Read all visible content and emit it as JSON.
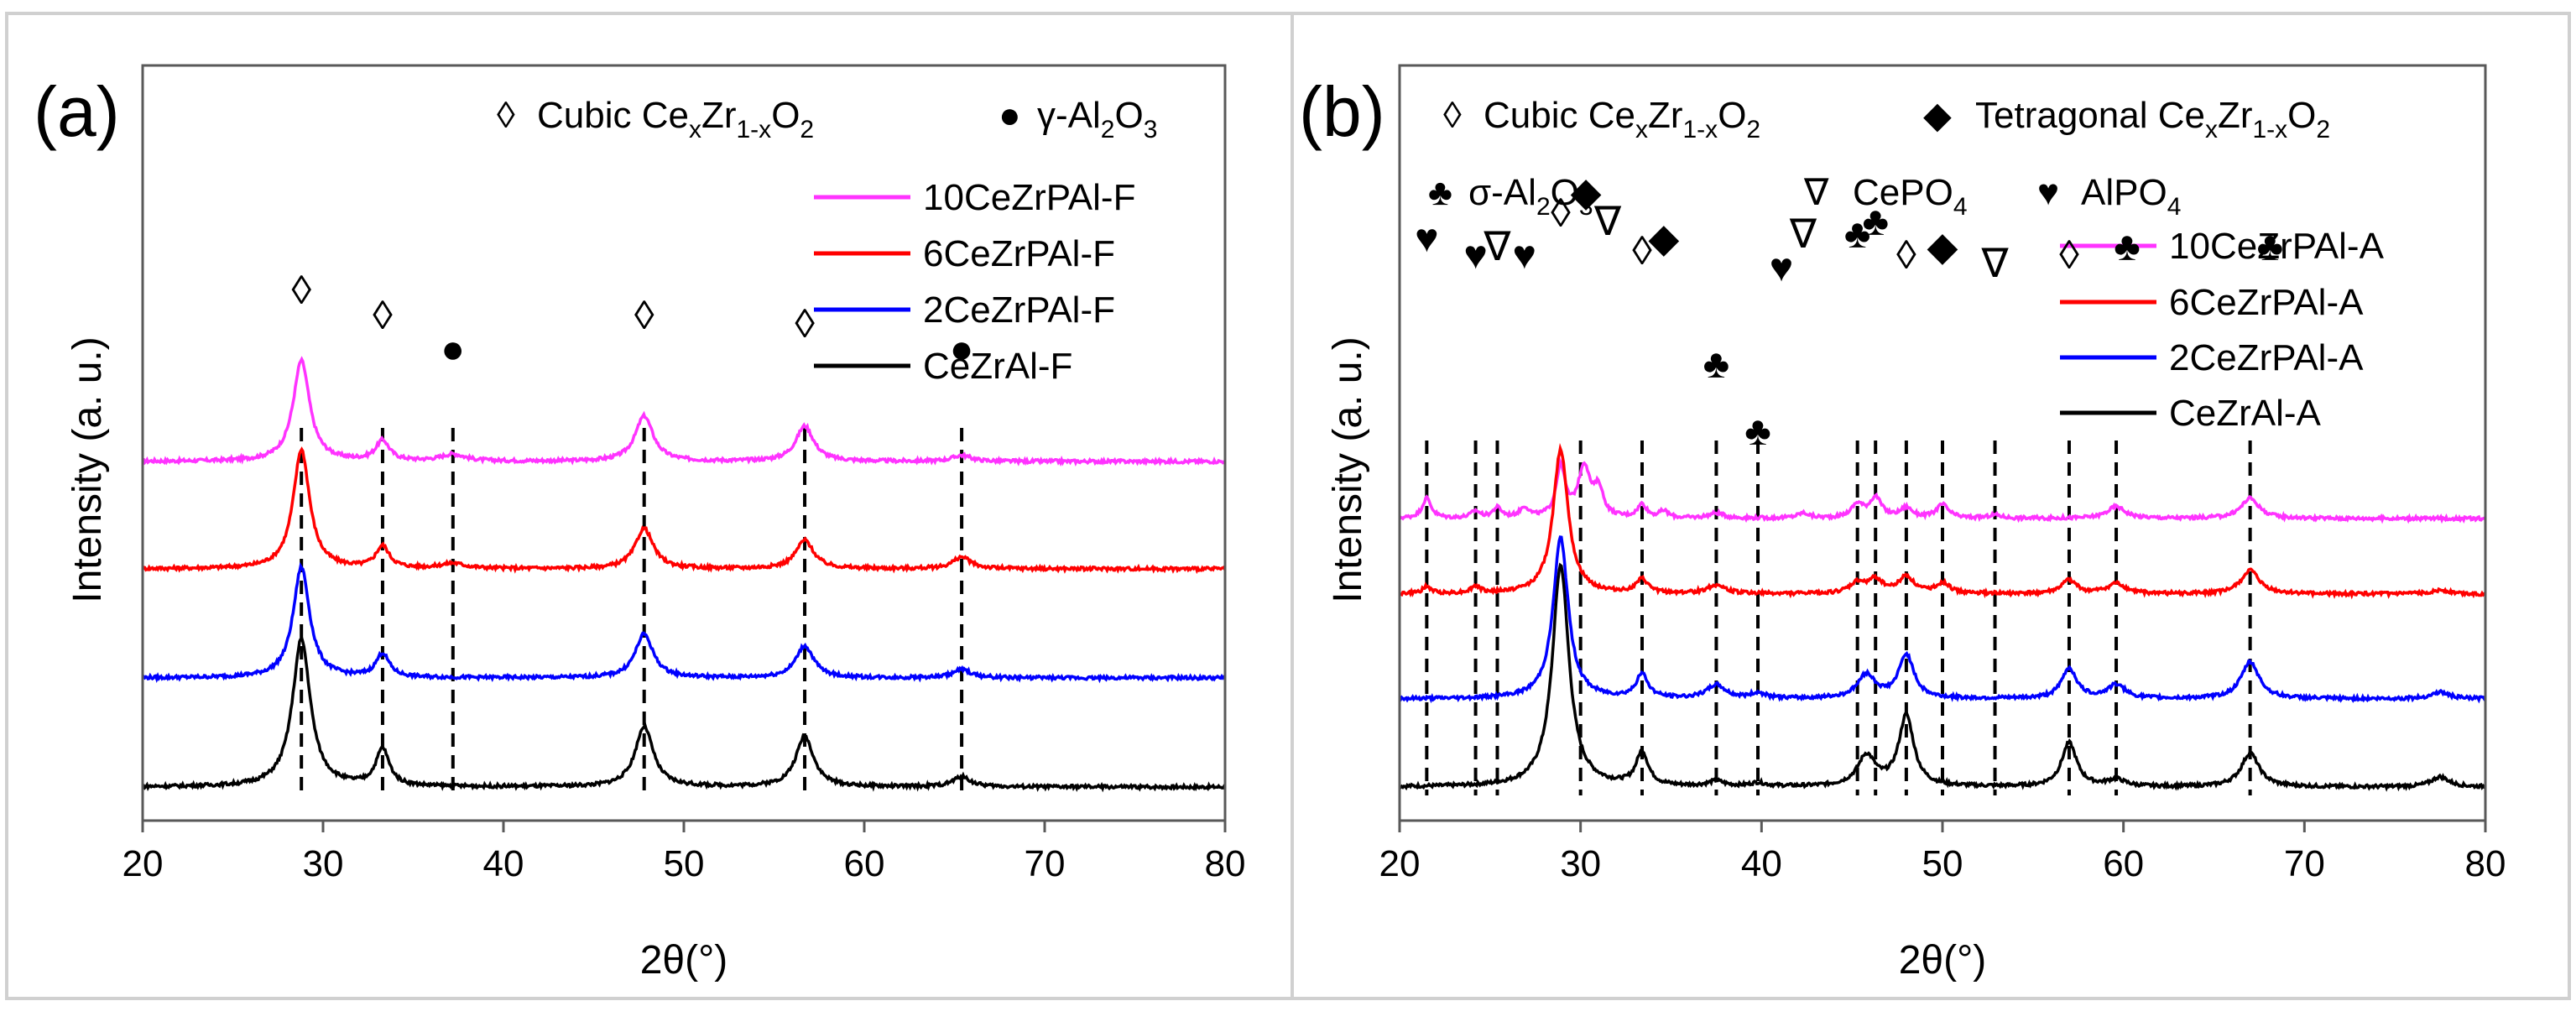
{
  "chart_data": [
    {
      "type": "line",
      "panel_label": "(a)",
      "xlabel": "2θ(°)",
      "ylabel": "Intensity (a. u.)",
      "xlim": [
        20,
        80
      ],
      "xticks": [
        "20",
        "30",
        "40",
        "50",
        "60",
        "70",
        "80"
      ],
      "grid": false,
      "legend": {
        "position": "top-right",
        "entries": [
          "10CeZrPAl-F",
          "6CeZrPAl-F",
          "2CeZrPAl-F",
          "CeZrAl-F"
        ]
      },
      "marker_key": [
        {
          "symbol": "◊",
          "label": "Cubic CeₓZr₁₋ₓO₂"
        },
        {
          "symbol": "●",
          "label": "γ-Al₂O₃"
        }
      ],
      "annotations": [
        {
          "symbol": "◊",
          "x": 28.8
        },
        {
          "symbol": "◊",
          "x": 33.3
        },
        {
          "symbol": "●",
          "x": 37.2
        },
        {
          "symbol": "◊",
          "x": 47.8
        },
        {
          "symbol": "◊",
          "x": 56.7
        },
        {
          "symbol": "●",
          "x": 65.4
        }
      ],
      "reference_lines": [
        28.8,
        33.3,
        37.2,
        47.8,
        56.7,
        65.4
      ],
      "series": [
        {
          "name": "10CeZrPAl-F",
          "color": "#ff33ff",
          "offset": 3,
          "baseline": 0.3,
          "noise": 0.05,
          "peaks": [
            [
              28.8,
              3.0,
              0.55
            ],
            [
              33.3,
              0.6,
              0.45
            ],
            [
              37.2,
              0.2,
              0.8
            ],
            [
              47.8,
              1.35,
              0.6
            ],
            [
              56.7,
              1.05,
              0.6
            ],
            [
              65.4,
              0.18,
              0.6
            ]
          ]
        },
        {
          "name": "6CeZrPAl-F",
          "color": "#ff0000",
          "offset": 2,
          "baseline": 0.3,
          "noise": 0.05,
          "peaks": [
            [
              28.8,
              3.55,
              0.55
            ],
            [
              33.3,
              0.65,
              0.45
            ],
            [
              37.2,
              0.15,
              0.8
            ],
            [
              47.8,
              1.2,
              0.6
            ],
            [
              56.7,
              0.85,
              0.6
            ],
            [
              65.4,
              0.35,
              0.6
            ]
          ]
        },
        {
          "name": "2CeZrPAl-F",
          "color": "#0000ff",
          "offset": 1,
          "baseline": 0.3,
          "noise": 0.05,
          "peaks": [
            [
              28.8,
              3.3,
              0.55
            ],
            [
              33.3,
              0.7,
              0.45
            ],
            [
              47.8,
              1.3,
              0.6
            ],
            [
              56.7,
              0.95,
              0.6
            ],
            [
              65.4,
              0.25,
              0.6
            ]
          ]
        },
        {
          "name": "CeZrAl-F",
          "color": "#000000",
          "offset": 0,
          "baseline": 0.3,
          "noise": 0.05,
          "peaks": [
            [
              28.8,
              4.4,
              0.6
            ],
            [
              33.3,
              1.1,
              0.45
            ],
            [
              47.8,
              1.8,
              0.6
            ],
            [
              56.7,
              1.5,
              0.6
            ],
            [
              65.4,
              0.3,
              0.6
            ]
          ]
        }
      ]
    },
    {
      "type": "line",
      "panel_label": "(b)",
      "xlabel": "2θ(°)",
      "ylabel": "Intensity (a. u.)",
      "xlim": [
        20,
        80
      ],
      "xticks": [
        "20",
        "30",
        "40",
        "50",
        "60",
        "70",
        "80"
      ],
      "grid": false,
      "legend": {
        "position": "top-right",
        "entries": [
          "10CeZrPAl-A",
          "6CeZrPAl-A",
          "2CeZrPAl-A",
          "CeZrAl-A"
        ]
      },
      "marker_key": [
        {
          "symbol": "◊",
          "label": "Cubic CeₓZr₁₋ₓO₂"
        },
        {
          "symbol": "◆",
          "label": "Tetragonal CeₓZr₁₋ₓO₂"
        },
        {
          "symbol": "♣",
          "label": "σ-Al₂O₃"
        },
        {
          "symbol": "∇",
          "label": "CePO₄"
        },
        {
          "symbol": "♥",
          "label": "AlPO₄"
        }
      ],
      "annotations": [
        {
          "symbol": "♥",
          "x": 21.5
        },
        {
          "symbol": "♥",
          "x": 24.2
        },
        {
          "symbol": "∇",
          "x": 25.4
        },
        {
          "symbol": "♥",
          "x": 26.9
        },
        {
          "symbol": "◊",
          "x": 28.9
        },
        {
          "symbol": "◆",
          "x": 30.3
        },
        {
          "symbol": "∇",
          "x": 31.5
        },
        {
          "symbol": "◊",
          "x": 33.4
        },
        {
          "symbol": "◆",
          "x": 34.6
        },
        {
          "symbol": "♣",
          "x": 37.5
        },
        {
          "symbol": "♣",
          "x": 39.8
        },
        {
          "symbol": "♥",
          "x": 41.1
        },
        {
          "symbol": "∇",
          "x": 42.3
        },
        {
          "symbol": "♣",
          "x": 45.3
        },
        {
          "symbol": "♣",
          "x": 46.3
        },
        {
          "symbol": "◊",
          "x": 48.0
        },
        {
          "symbol": "◆",
          "x": 50.0
        },
        {
          "symbol": "∇",
          "x": 52.9
        },
        {
          "symbol": "◊",
          "x": 57.0
        },
        {
          "symbol": "♣",
          "x": 60.2
        },
        {
          "symbol": "♣",
          "x": 68.1
        }
      ],
      "reference_lines": [
        21.5,
        24.2,
        25.4,
        30.0,
        33.4,
        37.5,
        39.8,
        45.3,
        46.3,
        48.0,
        50.0,
        52.9,
        57.0,
        59.6,
        67.0
      ],
      "series": [
        {
          "name": "10CeZrPAl-A",
          "color": "#ff33ff",
          "offset": 3,
          "baseline": 0.3,
          "noise": 0.05,
          "peaks": [
            [
              21.5,
              0.6,
              0.3
            ],
            [
              24.2,
              0.2,
              0.3
            ],
            [
              25.4,
              0.3,
              0.3
            ],
            [
              26.9,
              0.3,
              0.3
            ],
            [
              28.9,
              1.5,
              0.3
            ],
            [
              30.2,
              1.5,
              0.4
            ],
            [
              31.0,
              0.8,
              0.3
            ],
            [
              33.4,
              0.4,
              0.3
            ],
            [
              34.6,
              0.2,
              0.3
            ],
            [
              37.5,
              0.15,
              0.5
            ],
            [
              42.3,
              0.15,
              0.4
            ],
            [
              45.3,
              0.4,
              0.4
            ],
            [
              46.3,
              0.6,
              0.4
            ],
            [
              48.0,
              0.3,
              0.4
            ],
            [
              50.0,
              0.4,
              0.4
            ],
            [
              52.9,
              0.1,
              0.4
            ],
            [
              59.6,
              0.35,
              0.6
            ],
            [
              67.0,
              0.6,
              0.6
            ]
          ]
        },
        {
          "name": "6CeZrPAl-A",
          "color": "#ff0000",
          "offset": 2,
          "baseline": 0.3,
          "noise": 0.05,
          "peaks": [
            [
              21.5,
              0.2,
              0.3
            ],
            [
              24.2,
              0.2,
              0.3
            ],
            [
              28.9,
              4.3,
              0.5
            ],
            [
              33.4,
              0.4,
              0.4
            ],
            [
              37.5,
              0.25,
              0.6
            ],
            [
              45.3,
              0.3,
              0.5
            ],
            [
              46.3,
              0.4,
              0.5
            ],
            [
              48.0,
              0.5,
              0.5
            ],
            [
              50.0,
              0.3,
              0.5
            ],
            [
              57.0,
              0.4,
              0.5
            ],
            [
              59.6,
              0.3,
              0.6
            ],
            [
              67.0,
              0.7,
              0.6
            ],
            [
              77.5,
              0.12,
              0.6
            ]
          ]
        },
        {
          "name": "2CeZrPAl-A",
          "color": "#0000ff",
          "offset": 1,
          "baseline": 0.3,
          "noise": 0.05,
          "peaks": [
            [
              28.9,
              4.8,
              0.5
            ],
            [
              33.4,
              0.7,
              0.4
            ],
            [
              37.5,
              0.4,
              0.6
            ],
            [
              39.8,
              0.15,
              0.5
            ],
            [
              45.8,
              0.7,
              0.6
            ],
            [
              48.0,
              1.3,
              0.5
            ],
            [
              57.0,
              0.9,
              0.5
            ],
            [
              59.6,
              0.4,
              0.6
            ],
            [
              67.0,
              1.1,
              0.6
            ],
            [
              77.5,
              0.2,
              0.6
            ]
          ]
        },
        {
          "name": "CeZrAl-A",
          "color": "#000000",
          "offset": 0,
          "baseline": 0.3,
          "noise": 0.05,
          "peaks": [
            [
              28.9,
              6.6,
              0.55
            ],
            [
              33.4,
              1.0,
              0.4
            ],
            [
              37.5,
              0.15,
              0.5
            ],
            [
              39.8,
              0.1,
              0.5
            ],
            [
              45.8,
              0.9,
              0.6
            ],
            [
              48.0,
              2.1,
              0.5
            ],
            [
              57.0,
              1.3,
              0.5
            ],
            [
              59.6,
              0.2,
              0.6
            ],
            [
              67.0,
              1.0,
              0.6
            ],
            [
              77.5,
              0.3,
              0.6
            ]
          ]
        }
      ]
    }
  ]
}
